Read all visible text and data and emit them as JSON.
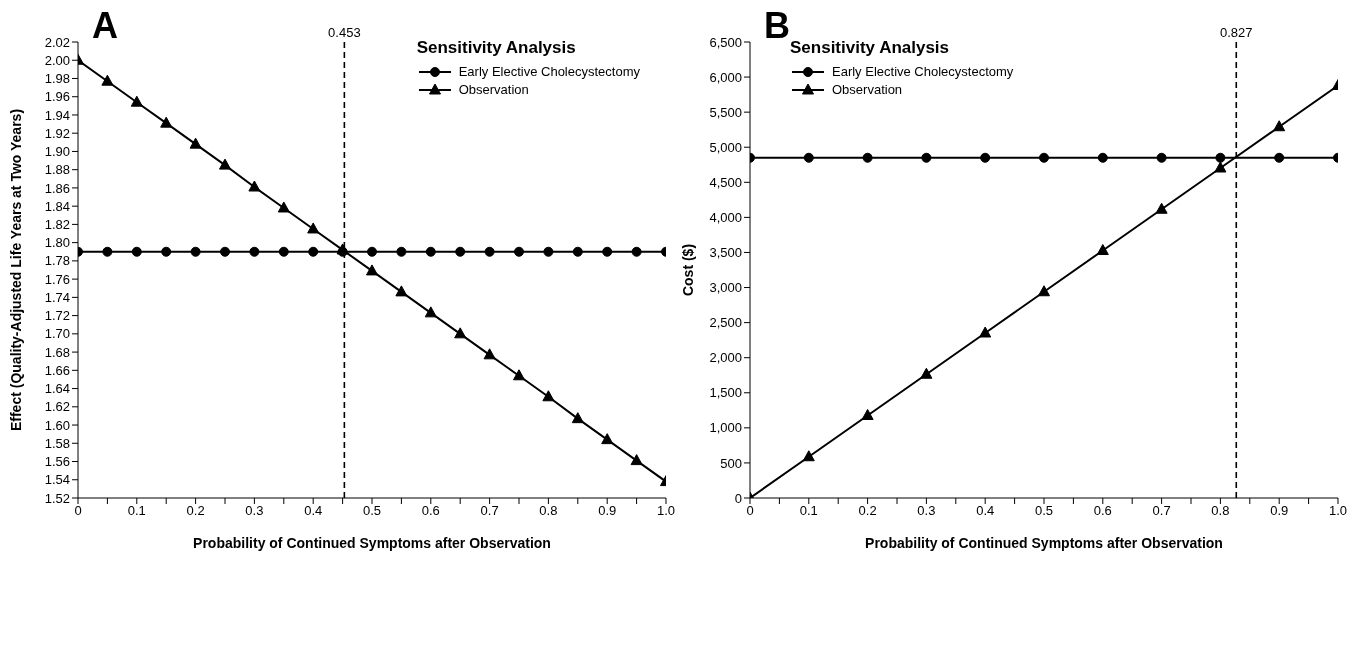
{
  "chart_data": [
    {
      "type": "line",
      "title": "A",
      "legend_title": "Sensitivity Analysis",
      "xlabel": "Probability of Continued Symptoms after Observation",
      "ylabel": "Effect (Quality-Adjusted Life Years at Two Years)",
      "x": [
        0,
        0.05,
        0.1,
        0.15,
        0.2,
        0.25,
        0.3,
        0.35,
        0.4,
        0.45,
        0.5,
        0.55,
        0.6,
        0.65,
        0.7,
        0.75,
        0.8,
        0.85,
        0.9,
        0.95,
        1.0
      ],
      "series": [
        {
          "name": "Early Elective Cholecystectomy",
          "color": "#000000",
          "marker": "circle",
          "values": [
            1.79,
            1.79,
            1.79,
            1.79,
            1.79,
            1.79,
            1.79,
            1.79,
            1.79,
            1.79,
            1.79,
            1.79,
            1.79,
            1.79,
            1.79,
            1.79,
            1.79,
            1.79,
            1.79,
            1.79,
            1.79
          ]
        },
        {
          "name": "Observation",
          "color": "#000000",
          "marker": "triangle",
          "values": [
            2.0,
            1.977,
            1.954,
            1.931,
            1.908,
            1.885,
            1.861,
            1.838,
            1.815,
            1.792,
            1.769,
            1.746,
            1.723,
            1.7,
            1.677,
            1.654,
            1.631,
            1.607,
            1.584,
            1.561,
            1.538
          ]
        }
      ],
      "xlim": [
        0,
        1
      ],
      "xticks": [
        0,
        {
          "value": 0.05,
          "label": null
        },
        0.1,
        {
          "value": 0.15,
          "label": null
        },
        0.2,
        {
          "value": 0.25,
          "label": null
        },
        0.3,
        {
          "value": 0.35,
          "label": null
        },
        0.4,
        {
          "value": 0.45,
          "label": null
        },
        0.5,
        {
          "value": 0.55,
          "label": null
        },
        0.6,
        {
          "value": 0.65,
          "label": null
        },
        0.7,
        {
          "value": 0.75,
          "label": null
        },
        0.8,
        {
          "value": 0.85,
          "label": null
        },
        0.9,
        {
          "value": 0.95,
          "label": null
        },
        {
          "value": 1,
          "label": "1.0"
        }
      ],
      "ylim": [
        1.52,
        2.02
      ],
      "yticks": [
        1.52,
        1.54,
        1.56,
        1.58,
        {
          "value": 1.6,
          "label": "1.60"
        },
        1.62,
        1.64,
        1.66,
        1.68,
        {
          "value": 1.7,
          "label": "1.70"
        },
        1.72,
        1.74,
        1.76,
        1.78,
        {
          "value": 1.8,
          "label": "1.80"
        },
        1.82,
        1.84,
        1.86,
        1.88,
        {
          "value": 1.9,
          "label": "1.90"
        },
        1.92,
        1.94,
        1.96,
        1.98,
        {
          "value": 2,
          "label": "2.00"
        },
        2.02
      ],
      "ref_lines": [
        {
          "axis": "x",
          "value": 0.453,
          "label": "0.453",
          "line_style": "dashed",
          "color": "#000000"
        }
      ],
      "grid": false,
      "legend": "top right"
    },
    {
      "type": "line",
      "title": "B",
      "legend_title": "Sensitivity Analysis",
      "xlabel": "Probability of Continued Symptoms after Observation",
      "ylabel": "Cost ($)",
      "x": [
        0,
        0.1,
        0.2,
        0.3,
        0.4,
        0.5,
        0.6,
        0.7,
        0.8,
        0.9,
        1.0
      ],
      "series": [
        {
          "name": "Early Elective Cholecystectomy",
          "color": "#000000",
          "marker": "circle",
          "values": [
            4850,
            4850,
            4850,
            4850,
            4850,
            4850,
            4850,
            4850,
            4850,
            4850,
            4850
          ]
        },
        {
          "name": "Observation",
          "color": "#000000",
          "marker": "triangle",
          "values": [
            0,
            588,
            1176,
            1764,
            2352,
            2940,
            3528,
            4116,
            4704,
            5292,
            5880
          ]
        }
      ],
      "xlim": [
        0,
        1
      ],
      "xticks": [
        0,
        {
          "value": 0.05,
          "label": null
        },
        0.1,
        {
          "value": 0.15,
          "label": null
        },
        0.2,
        {
          "value": 0.25,
          "label": null
        },
        0.3,
        {
          "value": 0.35,
          "label": null
        },
        0.4,
        {
          "value": 0.45,
          "label": null
        },
        0.5,
        {
          "value": 0.55,
          "label": null
        },
        0.6,
        {
          "value": 0.65,
          "label": null
        },
        0.7,
        {
          "value": 0.75,
          "label": null
        },
        0.8,
        {
          "value": 0.85,
          "label": null
        },
        0.9,
        {
          "value": 0.95,
          "label": null
        },
        {
          "value": 1,
          "label": "1.0"
        }
      ],
      "ylim": [
        0,
        6500
      ],
      "yticks": [
        0,
        500,
        {
          "value": 1000,
          "label": "1,000"
        },
        {
          "value": 1500,
          "label": "1,500"
        },
        {
          "value": 2000,
          "label": "2,000"
        },
        {
          "value": 2500,
          "label": "2,500"
        },
        {
          "value": 3000,
          "label": "3,000"
        },
        {
          "value": 3500,
          "label": "3,500"
        },
        {
          "value": 4000,
          "label": "4,000"
        },
        {
          "value": 4500,
          "label": "4,500"
        },
        {
          "value": 5000,
          "label": "5,000"
        },
        {
          "value": 5500,
          "label": "5,500"
        },
        {
          "value": 6000,
          "label": "6,000"
        },
        {
          "value": 6500,
          "label": "6,500"
        }
      ],
      "ref_lines": [
        {
          "axis": "x",
          "value": 0.827,
          "label": "0.827",
          "line_style": "dashed",
          "color": "#000000"
        }
      ],
      "grid": false,
      "legend": "top left"
    }
  ]
}
